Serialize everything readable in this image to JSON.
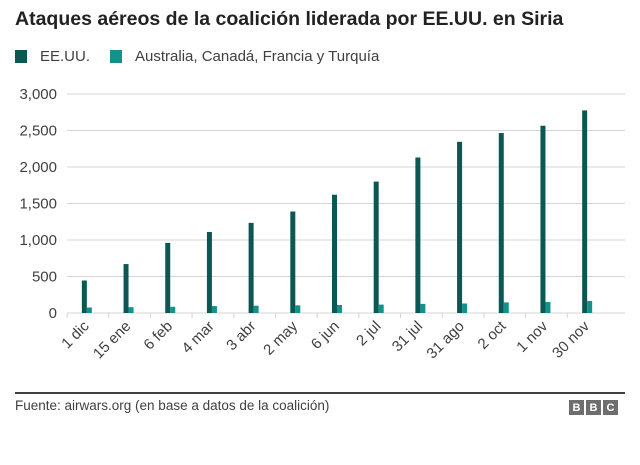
{
  "colors": {
    "us": "#0b5853",
    "others": "#14908d",
    "grid": "#d4d4d4",
    "text": "#404040"
  },
  "footer": {
    "source": "Fuente: airwars.org (en base a datos de la coalición)",
    "logo_letters": [
      "B",
      "B",
      "C"
    ]
  },
  "chart_data": {
    "type": "bar",
    "title": "Ataques aéreos de la coalición liderada por EE.UU. en Siria",
    "xlabel": "",
    "ylabel": "",
    "ylim": [
      0,
      3000
    ],
    "yticks": [
      0,
      500,
      1000,
      1500,
      2000,
      2500,
      3000
    ],
    "ytick_labels": [
      "0",
      "500",
      "1,000",
      "1,500",
      "2,000",
      "2,500",
      "3,000"
    ],
    "grid": true,
    "legend_position": "top-left",
    "categories": [
      "1 dic",
      "15 ene",
      "6 feb",
      "4 mar",
      "3 abr",
      "2 may",
      "6 jun",
      "2 jul",
      "31 jul",
      "31 ago",
      "2 oct",
      "1 nov",
      "30 nov"
    ],
    "series": [
      {
        "name": "EE.UU.",
        "values": [
          445,
          670,
          960,
          1110,
          1235,
          1390,
          1620,
          1800,
          2130,
          2345,
          2465,
          2565,
          2775
        ]
      },
      {
        "name": "Australia, Canadá, Francia y Turquía",
        "values": [
          75,
          80,
          85,
          95,
          100,
          105,
          110,
          115,
          125,
          130,
          145,
          150,
          165
        ]
      }
    ]
  }
}
